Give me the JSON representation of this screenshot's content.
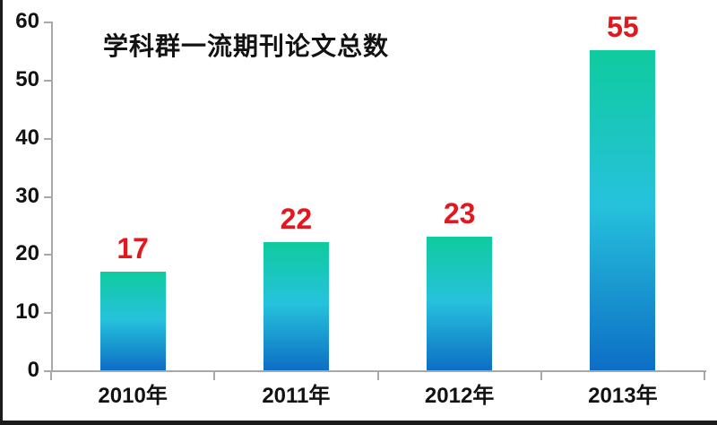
{
  "chart_data": {
    "type": "bar",
    "title": "学科群一流期刊论文总数",
    "categories": [
      "2010年",
      "2011年",
      "2012年",
      "2013年"
    ],
    "values": [
      17,
      22,
      23,
      55
    ],
    "data_labels": [
      "17",
      "22",
      "23",
      "55"
    ],
    "xlabel": "",
    "ylabel": "",
    "ylim": [
      0,
      60
    ],
    "yticks": [
      0,
      10,
      20,
      30,
      40,
      50,
      60
    ],
    "grid": false,
    "legend_position": "none",
    "colors": {
      "bar_gradient_top": "#0fcb9e",
      "bar_gradient_mid": "#26c2dc",
      "bar_gradient_bottom": "#0d6ec5",
      "value_label": "#e1191e",
      "axis_line": "#a8a8a8",
      "text": "#121212",
      "frame_border": "#1b1b1b",
      "background": "#ffffff"
    }
  }
}
